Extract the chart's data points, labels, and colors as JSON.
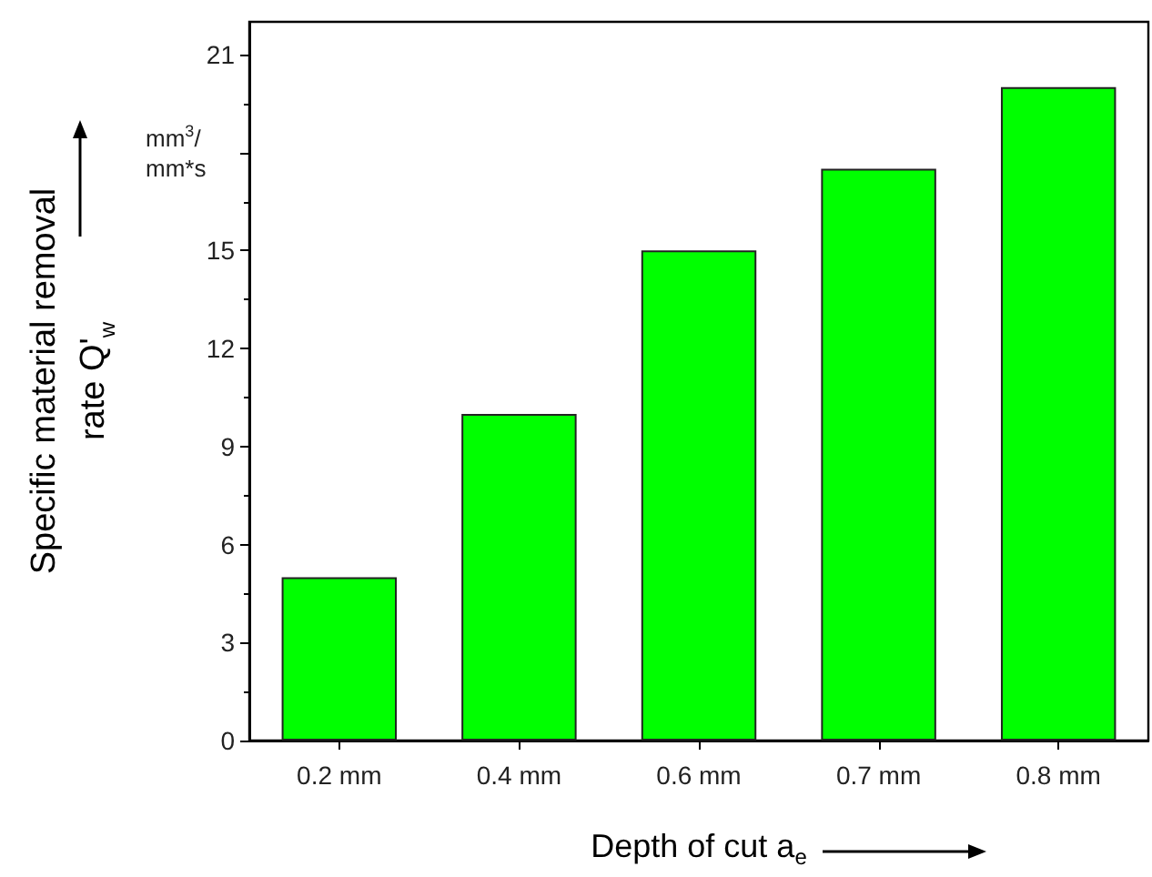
{
  "chart_data": {
    "type": "bar",
    "xlabel": "Depth of cut a$_{e}$",
    "ylabel": "Specific material removal\nrate Q'$_{w}$",
    "annotations": [
      "mm$^{3}$/\nmm*s"
    ],
    "categories": [
      "0.2 mm",
      "0.4 mm",
      "0.6 mm",
      "0.7 mm",
      "0.8 mm"
    ],
    "values": [
      5,
      10,
      15,
      17.5,
      20
    ],
    "color": "#00ff00",
    "ylim": [
      0,
      22
    ],
    "yticks": [
      0,
      3,
      6,
      9,
      12,
      15,
      {
        "value": 18,
        "label": null
      },
      21
    ],
    "grid": false
  }
}
